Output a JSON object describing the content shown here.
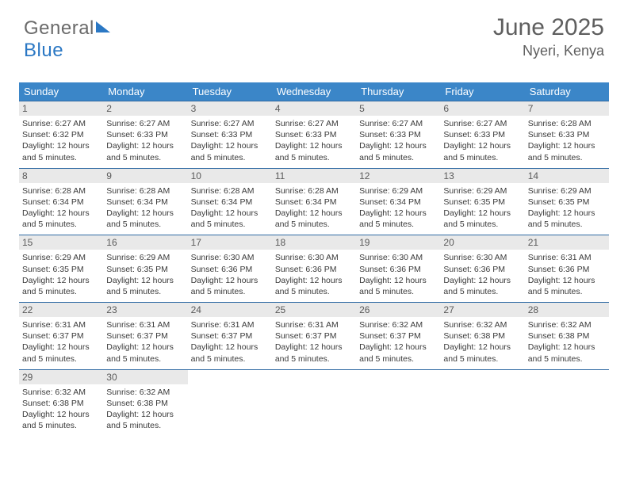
{
  "brand": {
    "part1": "General",
    "part2": "Blue"
  },
  "title": "June 2025",
  "location": "Nyeri, Kenya",
  "colors": {
    "header_bg": "#3b86c8",
    "header_text": "#ffffff",
    "week_border": "#2f6aa3",
    "daynum_bg": "#e9e9e9",
    "text": "#3a3a3a",
    "title_color": "#5f5f5f",
    "brand_gray": "#6a6a6a",
    "brand_blue": "#2b78c4"
  },
  "weekdays": [
    "Sunday",
    "Monday",
    "Tuesday",
    "Wednesday",
    "Thursday",
    "Friday",
    "Saturday"
  ],
  "weeks": [
    [
      {
        "n": "1",
        "sr": "6:27 AM",
        "ss": "6:32 PM",
        "dl": "12 hours and 5 minutes."
      },
      {
        "n": "2",
        "sr": "6:27 AM",
        "ss": "6:33 PM",
        "dl": "12 hours and 5 minutes."
      },
      {
        "n": "3",
        "sr": "6:27 AM",
        "ss": "6:33 PM",
        "dl": "12 hours and 5 minutes."
      },
      {
        "n": "4",
        "sr": "6:27 AM",
        "ss": "6:33 PM",
        "dl": "12 hours and 5 minutes."
      },
      {
        "n": "5",
        "sr": "6:27 AM",
        "ss": "6:33 PM",
        "dl": "12 hours and 5 minutes."
      },
      {
        "n": "6",
        "sr": "6:27 AM",
        "ss": "6:33 PM",
        "dl": "12 hours and 5 minutes."
      },
      {
        "n": "7",
        "sr": "6:28 AM",
        "ss": "6:33 PM",
        "dl": "12 hours and 5 minutes."
      }
    ],
    [
      {
        "n": "8",
        "sr": "6:28 AM",
        "ss": "6:34 PM",
        "dl": "12 hours and 5 minutes."
      },
      {
        "n": "9",
        "sr": "6:28 AM",
        "ss": "6:34 PM",
        "dl": "12 hours and 5 minutes."
      },
      {
        "n": "10",
        "sr": "6:28 AM",
        "ss": "6:34 PM",
        "dl": "12 hours and 5 minutes."
      },
      {
        "n": "11",
        "sr": "6:28 AM",
        "ss": "6:34 PM",
        "dl": "12 hours and 5 minutes."
      },
      {
        "n": "12",
        "sr": "6:29 AM",
        "ss": "6:34 PM",
        "dl": "12 hours and 5 minutes."
      },
      {
        "n": "13",
        "sr": "6:29 AM",
        "ss": "6:35 PM",
        "dl": "12 hours and 5 minutes."
      },
      {
        "n": "14",
        "sr": "6:29 AM",
        "ss": "6:35 PM",
        "dl": "12 hours and 5 minutes."
      }
    ],
    [
      {
        "n": "15",
        "sr": "6:29 AM",
        "ss": "6:35 PM",
        "dl": "12 hours and 5 minutes."
      },
      {
        "n": "16",
        "sr": "6:29 AM",
        "ss": "6:35 PM",
        "dl": "12 hours and 5 minutes."
      },
      {
        "n": "17",
        "sr": "6:30 AM",
        "ss": "6:36 PM",
        "dl": "12 hours and 5 minutes."
      },
      {
        "n": "18",
        "sr": "6:30 AM",
        "ss": "6:36 PM",
        "dl": "12 hours and 5 minutes."
      },
      {
        "n": "19",
        "sr": "6:30 AM",
        "ss": "6:36 PM",
        "dl": "12 hours and 5 minutes."
      },
      {
        "n": "20",
        "sr": "6:30 AM",
        "ss": "6:36 PM",
        "dl": "12 hours and 5 minutes."
      },
      {
        "n": "21",
        "sr": "6:31 AM",
        "ss": "6:36 PM",
        "dl": "12 hours and 5 minutes."
      }
    ],
    [
      {
        "n": "22",
        "sr": "6:31 AM",
        "ss": "6:37 PM",
        "dl": "12 hours and 5 minutes."
      },
      {
        "n": "23",
        "sr": "6:31 AM",
        "ss": "6:37 PM",
        "dl": "12 hours and 5 minutes."
      },
      {
        "n": "24",
        "sr": "6:31 AM",
        "ss": "6:37 PM",
        "dl": "12 hours and 5 minutes."
      },
      {
        "n": "25",
        "sr": "6:31 AM",
        "ss": "6:37 PM",
        "dl": "12 hours and 5 minutes."
      },
      {
        "n": "26",
        "sr": "6:32 AM",
        "ss": "6:37 PM",
        "dl": "12 hours and 5 minutes."
      },
      {
        "n": "27",
        "sr": "6:32 AM",
        "ss": "6:38 PM",
        "dl": "12 hours and 5 minutes."
      },
      {
        "n": "28",
        "sr": "6:32 AM",
        "ss": "6:38 PM",
        "dl": "12 hours and 5 minutes."
      }
    ],
    [
      {
        "n": "29",
        "sr": "6:32 AM",
        "ss": "6:38 PM",
        "dl": "12 hours and 5 minutes."
      },
      {
        "n": "30",
        "sr": "6:32 AM",
        "ss": "6:38 PM",
        "dl": "12 hours and 5 minutes."
      },
      null,
      null,
      null,
      null,
      null
    ]
  ],
  "labels": {
    "sunrise": "Sunrise:",
    "sunset": "Sunset:",
    "daylight": "Daylight:"
  }
}
